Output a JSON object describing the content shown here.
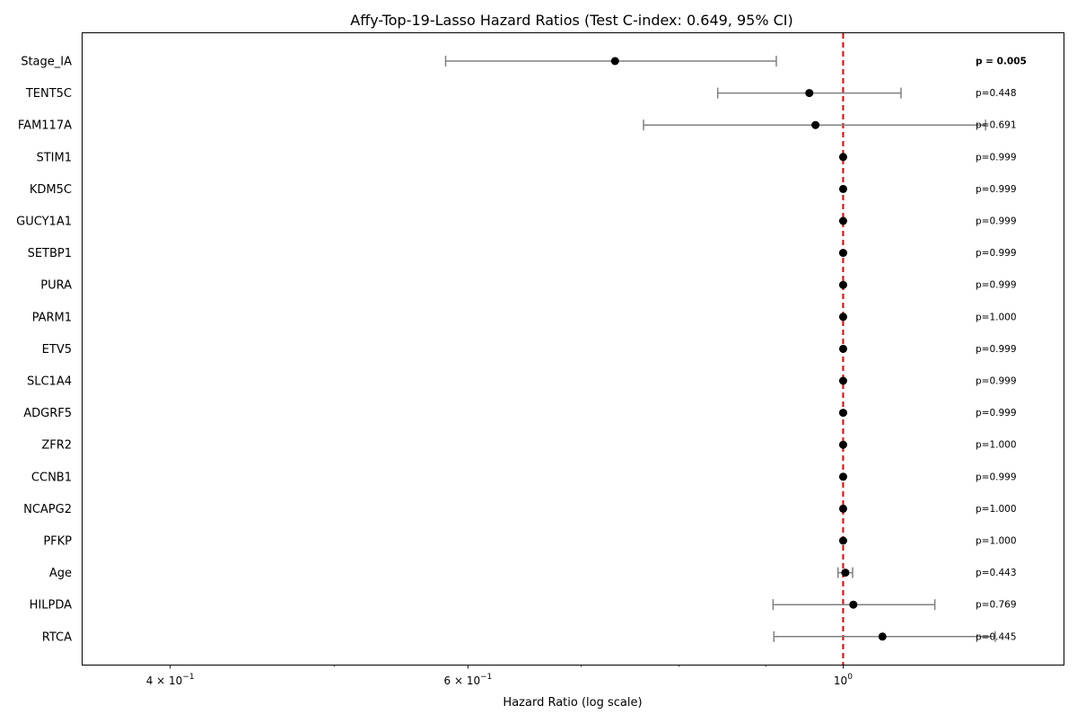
{
  "chart_data": {
    "type": "forest",
    "title": "Affy-Top-19-Lasso Hazard Ratios (Test C-index: 0.649, 95% CI)",
    "xlabel": "Hazard Ratio (log scale)",
    "ylabel": "",
    "xscale": "log",
    "xlim": [
      0.355,
      1.35
    ],
    "xticks": [
      {
        "value": 0.4,
        "label": "4 × 10",
        "exp": "−1"
      },
      {
        "value": 0.6,
        "label": "6 × 10",
        "exp": "−1"
      },
      {
        "value": 1.0,
        "label": "10",
        "exp": "0"
      }
    ],
    "minor_xticks": [
      0.5,
      0.7,
      0.8,
      0.9
    ],
    "reference_line": {
      "value": 1.0,
      "color": "#e00000",
      "style": "dashed"
    },
    "point_color": "#000000",
    "ci_color": "#808080",
    "grid": false,
    "rows": [
      {
        "name": "Stage_IA",
        "hr": 0.733,
        "lo": 0.582,
        "hi": 0.913,
        "p": "p = 0.005",
        "significant": true
      },
      {
        "name": "TENT5C",
        "hr": 0.955,
        "lo": 0.843,
        "hi": 1.082,
        "p": "p=0.448",
        "significant": false
      },
      {
        "name": "FAM117A",
        "hr": 0.963,
        "lo": 0.762,
        "hi": 1.214,
        "p": "p=0.691",
        "significant": false
      },
      {
        "name": "STIM1",
        "hr": 1.0,
        "lo": 1.0,
        "hi": 1.0,
        "p": "p=0.999",
        "significant": false
      },
      {
        "name": "KDM5C",
        "hr": 1.0,
        "lo": 1.0,
        "hi": 1.0,
        "p": "p=0.999",
        "significant": false
      },
      {
        "name": "GUCY1A1",
        "hr": 1.0,
        "lo": 1.0,
        "hi": 1.0,
        "p": "p=0.999",
        "significant": false
      },
      {
        "name": "SETBP1",
        "hr": 1.0,
        "lo": 1.0,
        "hi": 1.0,
        "p": "p=0.999",
        "significant": false
      },
      {
        "name": "PURA",
        "hr": 1.0,
        "lo": 1.0,
        "hi": 1.0,
        "p": "p=0.999",
        "significant": false
      },
      {
        "name": "PARM1",
        "hr": 1.0,
        "lo": 1.0,
        "hi": 1.0,
        "p": "p=1.000",
        "significant": false
      },
      {
        "name": "ETV5",
        "hr": 1.0,
        "lo": 1.0,
        "hi": 1.0,
        "p": "p=0.999",
        "significant": false
      },
      {
        "name": "SLC1A4",
        "hr": 1.0,
        "lo": 1.0,
        "hi": 1.0,
        "p": "p=0.999",
        "significant": false
      },
      {
        "name": "ADGRF5",
        "hr": 1.0,
        "lo": 1.0,
        "hi": 1.0,
        "p": "p=0.999",
        "significant": false
      },
      {
        "name": "ZFR2",
        "hr": 1.0,
        "lo": 1.0,
        "hi": 1.0,
        "p": "p=1.000",
        "significant": false
      },
      {
        "name": "CCNB1",
        "hr": 1.0,
        "lo": 1.0,
        "hi": 1.0,
        "p": "p=0.999",
        "significant": false
      },
      {
        "name": "NCAPG2",
        "hr": 1.0,
        "lo": 1.0,
        "hi": 1.0,
        "p": "p=1.000",
        "significant": false
      },
      {
        "name": "PFKP",
        "hr": 1.0,
        "lo": 1.0,
        "hi": 1.0,
        "p": "p=1.000",
        "significant": false
      },
      {
        "name": "Age",
        "hr": 1.003,
        "lo": 0.993,
        "hi": 1.013,
        "p": "p=0.443",
        "significant": false
      },
      {
        "name": "HILPDA",
        "hr": 1.014,
        "lo": 0.909,
        "hi": 1.133,
        "p": "p=0.769",
        "significant": false
      },
      {
        "name": "RTCA",
        "hr": 1.055,
        "lo": 0.91,
        "hi": 1.23,
        "p": "p=0.445",
        "significant": false
      }
    ]
  }
}
